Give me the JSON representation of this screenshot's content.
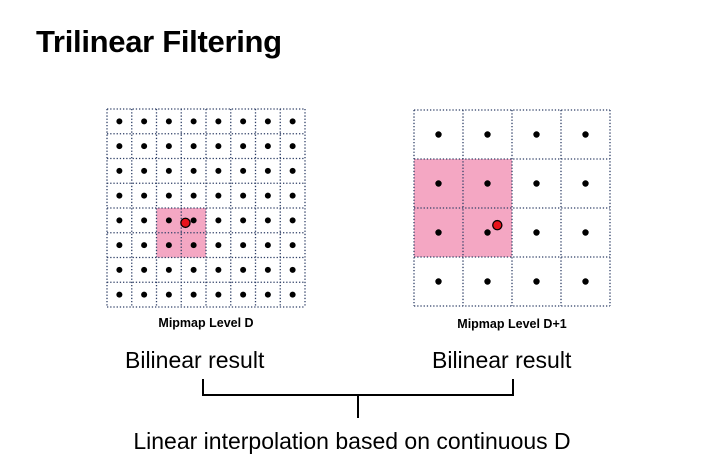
{
  "title": "Trilinear Filtering",
  "grids": [
    {
      "caption": "Mipmap Level D",
      "rows": 8,
      "cols": 8,
      "highlight": {
        "row_start": 4,
        "row_end": 6,
        "col_start": 2,
        "col_end": 4
      },
      "sample_point": {
        "col": 2.67,
        "row": 4.1
      }
    },
    {
      "caption": "Mipmap Level D+1",
      "rows": 4,
      "cols": 4,
      "highlight": {
        "row_start": 1,
        "row_end": 3,
        "col_start": 0,
        "col_end": 2
      },
      "sample_point": {
        "col": 1.2,
        "row": 1.85
      }
    }
  ],
  "results": [
    "Bilinear result",
    "Bilinear result"
  ],
  "combine_label": "Linear interpolation based on continuous D",
  "colors": {
    "highlight": "#F4A7C3",
    "grid_line": "#2E3F66",
    "sample_fill": "#E8121B",
    "dot": "#000000"
  }
}
